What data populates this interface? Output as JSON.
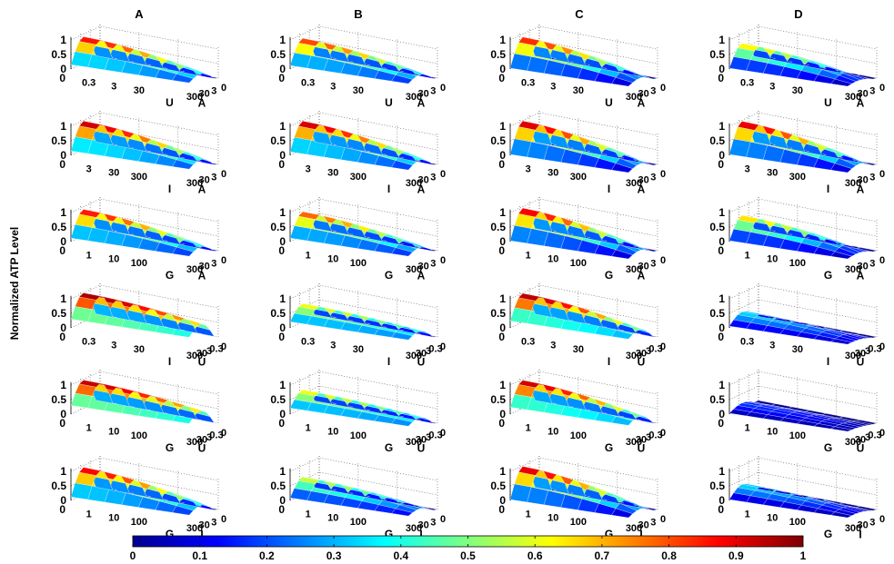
{
  "figure": {
    "ylabel": "Normalized ATP Level",
    "columns": [
      "A",
      "B",
      "C",
      "D"
    ],
    "z_ticks": [
      "0",
      "0.5",
      "1"
    ]
  },
  "colorbar": {
    "ticks": [
      "0",
      "0.1",
      "0.2",
      "0.3",
      "0.4",
      "0.5",
      "0.6",
      "0.7",
      "0.8",
      "0.9",
      "1"
    ],
    "colormap": "jet",
    "range": [
      0,
      1
    ]
  },
  "chart_data": {
    "type": "surface3d",
    "grid": true,
    "zlim": [
      0,
      1
    ],
    "rows": [
      {
        "x_var": "U",
        "x_ticks": [
          "0.3",
          "3",
          "30"
        ],
        "y_var": "A",
        "y_ticks": [
          "300",
          "30",
          "3",
          "0"
        ]
      },
      {
        "x_var": "I",
        "x_ticks": [
          "3",
          "30",
          "300"
        ],
        "y_var": "A",
        "y_ticks": [
          "300",
          "30",
          "3",
          "0"
        ]
      },
      {
        "x_var": "G",
        "x_ticks": [
          "1",
          "10",
          "100"
        ],
        "y_var": "A",
        "y_ticks": [
          "300",
          "30",
          "3",
          "0"
        ]
      },
      {
        "x_var": "I",
        "x_ticks": [
          "0.3",
          "3",
          "30"
        ],
        "y_var": "U",
        "y_ticks": [
          "300",
          "30",
          "3",
          "0.3",
          "0"
        ]
      },
      {
        "x_var": "G",
        "x_ticks": [
          "1",
          "10",
          "100"
        ],
        "y_var": "U",
        "y_ticks": [
          "300",
          "30",
          "3",
          "0.3",
          "0"
        ]
      },
      {
        "x_var": "G",
        "x_ticks": [
          "1",
          "10",
          "100"
        ],
        "y_var": "I",
        "y_ticks": [
          "300",
          "30",
          "3",
          "0"
        ]
      }
    ],
    "panels": [
      [
        {
          "column": "A",
          "peak": 0.9,
          "edge": 0.25,
          "wmin": 0.3
        },
        {
          "column": "B",
          "peak": 0.85,
          "edge": 0.2,
          "wmin": 0.3
        },
        {
          "column": "C",
          "peak": 0.9,
          "edge": 0.05,
          "wmin": 0.2
        },
        {
          "column": "D",
          "peak": 0.68,
          "edge": 0.05,
          "wmin": 0.15
        }
      ],
      [
        {
          "column": "A",
          "peak": 0.97,
          "edge": 0.25,
          "wmin": 0.3
        },
        {
          "column": "B",
          "peak": 0.97,
          "edge": 0.2,
          "wmin": 0.3
        },
        {
          "column": "C",
          "peak": 0.98,
          "edge": 0.05,
          "wmin": 0.2
        },
        {
          "column": "D",
          "peak": 0.97,
          "edge": 0.05,
          "wmin": 0.2
        }
      ],
      [
        {
          "column": "A",
          "peak": 0.9,
          "edge": 0.2,
          "wmin": 0.3
        },
        {
          "column": "B",
          "peak": 0.82,
          "edge": 0.2,
          "wmin": 0.3
        },
        {
          "column": "C",
          "peak": 0.95,
          "edge": 0.05,
          "wmin": 0.2
        },
        {
          "column": "D",
          "peak": 0.7,
          "edge": 0.05,
          "wmin": 0.15
        }
      ],
      [
        {
          "column": "A",
          "peak": 0.98,
          "edge": 0.5,
          "wmin": 0.55
        },
        {
          "column": "B",
          "peak": 0.62,
          "edge": 0.35,
          "wmin": 0.5
        },
        {
          "column": "C",
          "peak": 0.97,
          "edge": 0.4,
          "wmin": 0.35
        },
        {
          "column": "D",
          "peak": 0.35,
          "edge": 0.1,
          "wmin": 0.2
        }
      ],
      [
        {
          "column": "A",
          "peak": 0.95,
          "edge": 0.5,
          "wmin": 0.55
        },
        {
          "column": "B",
          "peak": 0.62,
          "edge": 0.35,
          "wmin": 0.5
        },
        {
          "column": "C",
          "peak": 0.95,
          "edge": 0.4,
          "wmin": 0.35
        },
        {
          "column": "D",
          "peak": 0.18,
          "edge": 0.05,
          "wmin": 0.2
        }
      ],
      [
        {
          "column": "A",
          "peak": 0.93,
          "edge": 0.2,
          "wmin": 0.3
        },
        {
          "column": "B",
          "peak": 0.6,
          "edge": 0.15,
          "wmin": 0.3
        },
        {
          "column": "C",
          "peak": 0.97,
          "edge": 0.05,
          "wmin": 0.2
        },
        {
          "column": "D",
          "peak": 0.35,
          "edge": 0.05,
          "wmin": 0.2
        }
      ]
    ]
  }
}
